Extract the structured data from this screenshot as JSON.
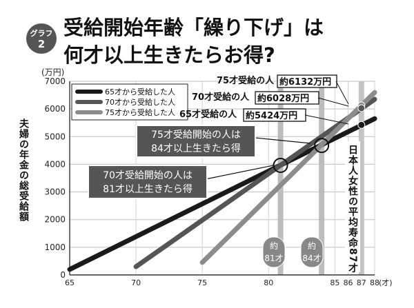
{
  "header": {
    "badge_line1": "グラフ",
    "badge_line2": "2",
    "title_line1": "受給開始年齢「繰り下げ」は",
    "title_line2": "何才以上生きたらお得?"
  },
  "chart_data": {
    "type": "line",
    "title": "受給開始年齢「繰り下げ」は何才以上生きたらお得?",
    "ylabel": "夫婦の年金の総受給額",
    "yunit": "(万円)",
    "xunit": "(才)",
    "xlim": [
      65,
      88
    ],
    "ylim": [
      0,
      7000
    ],
    "x_ticks": [
      65,
      70,
      75,
      80,
      85,
      86,
      87,
      88
    ],
    "x_tick_labels": [
      "65",
      "70",
      "75",
      "80",
      "85",
      "86",
      "87",
      "88"
    ],
    "y_ticks": [
      0,
      1000,
      2000,
      3000,
      4000,
      5000,
      6000,
      7000
    ],
    "y_tick_labels": [
      "0",
      "1000",
      "2000",
      "3000",
      "4000",
      "5000",
      "6000",
      "7000"
    ],
    "grid": true,
    "legend_position": "top-left",
    "series": [
      {
        "name": "65才から受給した人",
        "color": "#1a1a1a",
        "x": [
          65,
          88
        ],
        "y": [
          200,
          5650
        ]
      },
      {
        "name": "70才から受給した人",
        "color": "#555555",
        "x": [
          70,
          88
        ],
        "y": [
          300,
          6350
        ]
      },
      {
        "name": "75才から受給した人",
        "color": "#8c8c8c",
        "x": [
          75,
          88
        ],
        "y": [
          450,
          6600
        ]
      }
    ],
    "markers": [
      {
        "x": 87,
        "y": 6132,
        "color": "#8c8c8c"
      },
      {
        "x": 87,
        "y": 6028,
        "color": "#555555"
      },
      {
        "x": 87,
        "y": 5424,
        "color": "#1a1a1a"
      }
    ],
    "crossovers": [
      {
        "x": 80.9,
        "y": 3960
      },
      {
        "x": 84,
        "y": 4680
      }
    ],
    "vertical_markers": [
      {
        "x": 80.9,
        "label_line1": "約",
        "label_line2": "81才"
      },
      {
        "x": 84,
        "label_line1": "約",
        "label_line2": "84才"
      },
      {
        "x": 87,
        "label": "日本人女性の平均寿命87才"
      }
    ],
    "value_callouts": [
      {
        "prefix": "75才受給の人",
        "value": "約6132万円"
      },
      {
        "prefix": "70才受給の人",
        "value": "約6028万円"
      },
      {
        "prefix": "65才受給の人",
        "value": "約5424万円"
      }
    ],
    "annotations": [
      {
        "line1": "75才受給開始の人は",
        "line2": "84才以上生きたら得"
      },
      {
        "line1": "70才受給開始の人は",
        "line2": "81才以上生きたら得"
      }
    ]
  }
}
